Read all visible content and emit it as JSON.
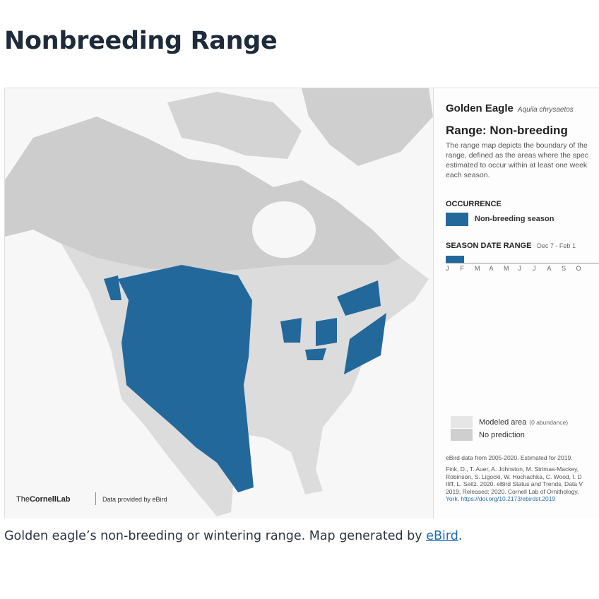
{
  "header": {
    "title": "Nonbreeding Range"
  },
  "map": {
    "species": "Golden Eagle",
    "scientific_name": "Aquila chrysaetos",
    "range_title": "Range: Non-breeding",
    "description_lines": [
      "The range map depicts the boundary of the",
      "range, defined as the areas where the spec",
      "estimated to occur within at least one week",
      "each season."
    ],
    "occurrence_heading": "OCCURRENCE",
    "occurrence_label": "Non-breeding season",
    "season_heading": "SEASON DATE RANGE",
    "season_dates": "Dec 7 - Feb 1",
    "months": [
      "J",
      "F",
      "M",
      "A",
      "M",
      "J",
      "J",
      "A",
      "S",
      "O"
    ],
    "modeled_area": "Modeled area",
    "modeled_area_note": "(0 abundance)",
    "no_prediction": "No prediction",
    "data_note": "eBird data from 2005-2020. Estimated for 2019.",
    "citation_lines": [
      "Fink, D., T. Auer, A. Johnston, M. Strimas-Mackey,",
      "Robinson, S. Ligocki, W. Hochachka, C. Wood, I. D",
      "Iliff, L. Seitz. 2020. eBird Status and Trends, Data V",
      "2019; Released: 2020. Cornell Lab of Ornithology,",
      "York. https://doi.org/10.2173/ebirdst.2019"
    ],
    "logo_prefix": "The",
    "logo_name": "CornellLab",
    "provider": "Data provided by eBird"
  },
  "caption": {
    "text": "Golden eagle’s non-breeding or wintering range. Map generated by ",
    "link": "eBird",
    "end": "."
  }
}
